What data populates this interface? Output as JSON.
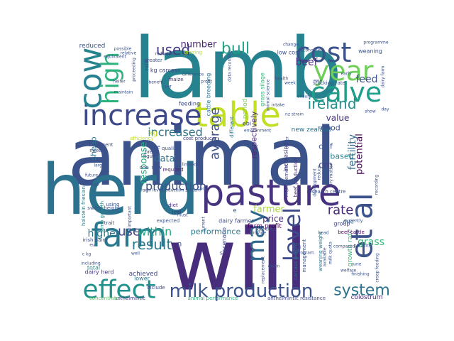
{
  "chart_data": {
    "type": "wordcloud",
    "words": [
      {
        "text": "lamb",
        "weight": 1.0,
        "color": "#26828e"
      },
      {
        "text": "animal",
        "weight": 0.98,
        "color": "#3b528b"
      },
      {
        "text": "will",
        "weight": 0.97,
        "color": "#472d7b"
      },
      {
        "text": "herd",
        "weight": 0.78,
        "color": "#2c728e"
      },
      {
        "text": "pasture",
        "weight": 0.46,
        "color": "#46327e"
      },
      {
        "text": "table",
        "weight": 0.45,
        "color": "#c2df23"
      },
      {
        "text": "farm",
        "weight": 0.44,
        "color": "#2a788e"
      },
      {
        "text": "increase",
        "weight": 0.44,
        "color": "#3e4989"
      },
      {
        "text": "cost",
        "weight": 0.42,
        "color": "#3b528b"
      },
      {
        "text": "year",
        "weight": 0.41,
        "color": "#6ece58"
      },
      {
        "text": "calve",
        "weight": 0.4,
        "color": "#1f9e89"
      },
      {
        "text": "effect",
        "weight": 0.4,
        "color": "#21918c"
      },
      {
        "text": "cow",
        "weight": 0.4,
        "color": "#26828e"
      },
      {
        "text": "high",
        "weight": 0.37,
        "color": "#2db27d"
      },
      {
        "text": "et al",
        "weight": 0.36,
        "color": "#3b528b"
      },
      {
        "text": "may",
        "weight": 0.33,
        "color": "#31688e"
      },
      {
        "text": "level",
        "weight": 0.3,
        "color": "#3e4a89"
      },
      {
        "text": "milk production",
        "weight": 0.28,
        "color": "#3b528b"
      },
      {
        "text": "system",
        "weight": 0.27,
        "color": "#2c728e"
      },
      {
        "text": "used",
        "weight": 0.26,
        "color": "#443a83"
      },
      {
        "text": "bull",
        "weight": 0.26,
        "color": "#1fa187"
      },
      {
        "text": "ireland",
        "weight": 0.23,
        "color": "#21918c"
      },
      {
        "text": "result",
        "weight": 0.22,
        "color": "#2a788e"
      },
      {
        "text": "use",
        "weight": 0.22,
        "color": "#414487"
      },
      {
        "text": "average",
        "weight": 0.21,
        "color": "#3b528b"
      },
      {
        "text": "rate",
        "weight": 0.2,
        "color": "#482878"
      },
      {
        "text": "production",
        "weight": 0.19,
        "color": "#3b528b"
      },
      {
        "text": "within",
        "weight": 0.19,
        "color": "#22a884"
      },
      {
        "text": "increased",
        "weight": 0.19,
        "color": "#2c728e"
      },
      {
        "text": "fertility",
        "weight": 0.19,
        "color": "#31688e"
      },
      {
        "text": "higher",
        "weight": 0.18,
        "color": "#2a788e"
      },
      {
        "text": "beef",
        "weight": 0.17,
        "color": "#472d7b"
      },
      {
        "text": "feed",
        "weight": 0.17,
        "color": "#3b528b"
      },
      {
        "text": "grass",
        "weight": 0.17,
        "color": "#35b779"
      },
      {
        "text": "potential",
        "weight": 0.16,
        "color": "#440154"
      },
      {
        "text": "number",
        "weight": 0.16,
        "color": "#482475"
      },
      {
        "text": "response",
        "weight": 0.16,
        "color": "#27ad81"
      },
      {
        "text": "data",
        "weight": 0.16,
        "color": "#2c728e"
      },
      {
        "text": "cm",
        "weight": 0.16,
        "color": "#414487"
      },
      {
        "text": "farmer",
        "weight": 0.16,
        "color": "#a8db34"
      },
      {
        "text": "value",
        "weight": 0.15,
        "color": "#46327e"
      },
      {
        "text": "price",
        "weight": 0.15,
        "color": "#472d7b"
      },
      {
        "text": "performance",
        "weight": 0.14,
        "color": "#2a788e"
      },
      {
        "text": "respectively",
        "weight": 0.14,
        "color": "#482475"
      },
      {
        "text": "calf",
        "weight": 0.13,
        "color": "#3b528b"
      },
      {
        "text": "good",
        "weight": 0.13,
        "color": "#3b528b"
      },
      {
        "text": "based",
        "weight": 0.13,
        "color": "#26828e"
      },
      {
        "text": "sheep",
        "weight": 0.13,
        "color": "#2c728e"
      },
      {
        "text": "kg",
        "weight": 0.12,
        "color": "#d8e219"
      },
      {
        "text": "achieved",
        "weight": 0.11,
        "color": "#3e4989"
      },
      {
        "text": "reduced",
        "weight": 0.11,
        "color": "#3b528b"
      },
      {
        "text": "colostrum",
        "weight": 0.1,
        "color": "#482878"
      },
      {
        "text": "new zealand",
        "weight": 0.1,
        "color": "#2c728e"
      },
      {
        "text": "farm profit",
        "weight": 0.1,
        "color": "#440154"
      },
      {
        "text": "growth rate",
        "weight": 0.1,
        "color": "#35b779"
      },
      {
        "text": "period",
        "weight": 0.1,
        "color": "#7ad151"
      },
      {
        "text": "dairy herd",
        "weight": 0.09,
        "color": "#443983"
      },
      {
        "text": "total",
        "weight": 0.09,
        "color": "#21918c"
      },
      {
        "text": "lower",
        "weight": 0.09,
        "color": "#2a788e"
      },
      {
        "text": "weaning",
        "weight": 0.09,
        "color": "#3b528b"
      },
      {
        "text": "low cost",
        "weight": 0.09,
        "color": "#3b528b"
      },
      {
        "text": "feeding",
        "weight": 0.09,
        "color": "#3e4989"
      },
      {
        "text": "due",
        "weight": 0.09,
        "color": "#31688e"
      },
      {
        "text": "group",
        "weight": 0.08,
        "color": "#414487"
      },
      {
        "text": "kg carcass",
        "weight": 0.08,
        "color": "#414487"
      },
      {
        "text": "cattle breeding",
        "weight": 0.08,
        "color": "#2a788e"
      },
      {
        "text": "grass silage",
        "weight": 0.08,
        "color": "#35b779"
      },
      {
        "text": "milk",
        "weight": 0.08,
        "color": "#3b528b"
      },
      {
        "text": "increasing",
        "weight": 0.08,
        "color": "#46337f"
      },
      {
        "text": "dairy farmer",
        "weight": 0.08,
        "color": "#3e4a89"
      },
      {
        "text": "scenario",
        "weight": 0.08,
        "color": "#3e4989"
      },
      {
        "text": "ebi",
        "weight": 0.08,
        "color": "#414487"
      },
      {
        "text": "anthelmintic resistance",
        "weight": 0.08,
        "color": "#3e4989"
      },
      {
        "text": "anthelmintic",
        "weight": 0.07,
        "color": "#443a83"
      },
      {
        "text": "concentrate",
        "weight": 0.07,
        "color": "#5ec962"
      },
      {
        "text": "animal performance",
        "weight": 0.07,
        "color": "#2db27d"
      },
      {
        "text": "sward height",
        "weight": 0.07,
        "color": "#3b528b"
      },
      {
        "text": "holstein friesian",
        "weight": 0.07,
        "color": "#26828e"
      },
      {
        "text": "irish dairy",
        "weight": 0.07,
        "color": "#3b528b"
      },
      {
        "text": "lamb growth",
        "weight": 0.07,
        "color": "#21918c"
      },
      {
        "text": "treatment",
        "weight": 0.07,
        "color": "#3e4a89"
      },
      {
        "text": "beef production",
        "weight": 0.07,
        "color": "#46327e"
      },
      {
        "text": "carcass weight",
        "weight": 0.07,
        "color": "#2c728e"
      },
      {
        "text": "weaning weight",
        "weight": 0.06,
        "color": "#2a788e"
      },
      {
        "text": "stocking rate",
        "weight": 0.06,
        "color": "#3b528b"
      },
      {
        "text": "beef cattle",
        "weight": 0.06,
        "color": "#440154"
      },
      {
        "text": "research centre",
        "weight": 0.06,
        "color": "#3b528b"
      },
      {
        "text": "management",
        "weight": 0.06,
        "color": "#3b528b"
      },
      {
        "text": "improvement",
        "weight": 0.06,
        "color": "#3b528b"
      },
      {
        "text": "different",
        "weight": 0.06,
        "color": "#2c728e"
      },
      {
        "text": "quality",
        "weight": 0.06,
        "color": "#3b528b"
      },
      {
        "text": "figure",
        "weight": 0.06,
        "color": "#3e4a89"
      },
      {
        "text": "required",
        "weight": 0.06,
        "color": "#482475"
      },
      {
        "text": "diet",
        "weight": 0.06,
        "color": "#472d7b"
      },
      {
        "text": "icbf",
        "weight": 0.06,
        "color": "#472d7b"
      },
      {
        "text": "expected",
        "weight": 0.06,
        "color": "#3b528b"
      },
      {
        "text": "using",
        "weight": 0.06,
        "color": "#3b528b"
      },
      {
        "text": "trait",
        "weight": 0.06,
        "color": "#3b528b"
      },
      {
        "text": "need",
        "weight": 0.06,
        "color": "#3b528b"
      },
      {
        "text": "include",
        "weight": 0.06,
        "color": "#3e4989"
      },
      {
        "text": "time",
        "weight": 0.06,
        "color": "#3b528b"
      },
      {
        "text": "breed",
        "weight": 0.06,
        "color": "#3b528b"
      },
      {
        "text": "one",
        "weight": 0.06,
        "color": "#3b528b"
      },
      {
        "text": "new",
        "weight": 0.06,
        "color": "#3b528b"
      },
      {
        "text": "greater",
        "weight": 0.06,
        "color": "#3b528b"
      },
      {
        "text": "cost producer",
        "weight": 0.05,
        "color": "#414487"
      },
      {
        "text": "efficiency",
        "weight": 0.05,
        "color": "#c2df23"
      },
      {
        "text": "grazing",
        "weight": 0.05,
        "color": "#b5de2b"
      },
      {
        "text": "maize",
        "weight": 0.05,
        "color": "#46337f"
      },
      {
        "text": "possible",
        "weight": 0.05,
        "color": "#3b528b"
      },
      {
        "text": "heifer",
        "weight": 0.05,
        "color": "#3b528b"
      },
      {
        "text": "program",
        "weight": 0.05,
        "color": "#3b528b"
      },
      {
        "text": "compared",
        "weight": 0.05,
        "color": "#3b528b"
      },
      {
        "text": "head",
        "weight": 0.05,
        "color": "#3b528b"
      },
      {
        "text": "genetic",
        "weight": 0.05,
        "color": "#3b528b"
      },
      {
        "text": "week",
        "weight": 0.05,
        "color": "#3b528b"
      },
      {
        "text": "well",
        "weight": 0.05,
        "color": "#3b528b"
      },
      {
        "text": "must",
        "weight": 0.05,
        "color": "#3b528b"
      },
      {
        "text": "reduce",
        "weight": 0.05,
        "color": "#3b528b"
      },
      {
        "text": "recording",
        "weight": 0.05,
        "color": "#3b528b"
      },
      {
        "text": "important",
        "weight": 0.05,
        "color": "#3b528b"
      },
      {
        "text": "large",
        "weight": 0.04,
        "color": "#3b528b"
      },
      {
        "text": "health",
        "weight": 0.04,
        "color": "#3b528b"
      },
      {
        "text": "difference",
        "weight": 0.04,
        "color": "#3b528b"
      },
      {
        "text": "profit",
        "weight": 0.04,
        "color": "#3b528b"
      },
      {
        "text": "reduction",
        "weight": 0.04,
        "color": "#3b528b"
      },
      {
        "text": "equivalent",
        "weight": 0.04,
        "color": "#3b528b"
      },
      {
        "text": "maintain",
        "weight": 0.04,
        "color": "#3b528b"
      },
      {
        "text": "benefit",
        "weight": 0.04,
        "color": "#3b528b"
      },
      {
        "text": "per",
        "weight": 0.04,
        "color": "#3b528b"
      },
      {
        "text": "environment",
        "weight": 0.04,
        "color": "#3b528b"
      },
      {
        "text": "ensure",
        "weight": 0.04,
        "color": "#3b528b"
      },
      {
        "text": "intake",
        "weight": 0.04,
        "color": "#3b528b"
      },
      {
        "text": "current",
        "weight": 0.04,
        "color": "#3b528b"
      },
      {
        "text": "currently",
        "weight": 0.04,
        "color": "#3b528b"
      },
      {
        "text": "limited",
        "weight": 0.04,
        "color": "#3b528b"
      },
      {
        "text": "flock",
        "weight": 0.04,
        "color": "#3b528b"
      },
      {
        "text": "farm level",
        "weight": 0.04,
        "color": "#3b528b"
      },
      {
        "text": "production system",
        "weight": 0.04,
        "color": "#3b528b"
      },
      {
        "text": "replacement",
        "weight": 0.04,
        "color": "#3b528b"
      },
      {
        "text": "given",
        "weight": 0.04,
        "color": "#3b528b"
      },
      {
        "text": "provide",
        "weight": 0.04,
        "color": "#3b528b"
      },
      {
        "text": "welfare",
        "weight": 0.04,
        "color": "#3b528b"
      },
      {
        "text": "finishing",
        "weight": 0.04,
        "color": "#3b528b"
      },
      {
        "text": "june",
        "weight": 0.04,
        "color": "#3b528b"
      },
      {
        "text": "change",
        "weight": 0.04,
        "color": "#3b528b"
      },
      {
        "text": "economic",
        "weight": 0.04,
        "color": "#3b528b"
      },
      {
        "text": "programme",
        "weight": 0.04,
        "color": "#3b528b"
      },
      {
        "text": "early",
        "weight": 0.04,
        "color": "#3b528b"
      },
      {
        "text": "dairy farm",
        "weight": 0.04,
        "color": "#3b528b"
      },
      {
        "text": "study",
        "weight": 0.04,
        "color": "#3b528b"
      },
      {
        "text": "show",
        "weight": 0.04,
        "color": "#3b528b"
      },
      {
        "text": "day",
        "weight": 0.04,
        "color": "#3b528b"
      },
      {
        "text": "parasite",
        "weight": 0.04,
        "color": "#3b528b"
      },
      {
        "text": "creep feeding",
        "weight": 0.04,
        "color": "#3b528b"
      },
      {
        "text": "either",
        "weight": 0.04,
        "color": "#3b528b"
      },
      {
        "text": "milk quota",
        "weight": 0.04,
        "color": "#3b528b"
      },
      {
        "text": "future",
        "weight": 0.04,
        "color": "#3b528b"
      },
      {
        "text": "age",
        "weight": 0.04,
        "color": "#3b528b"
      },
      {
        "text": "eu",
        "weight": 0.04,
        "color": "#3b528b"
      },
      {
        "text": "c kg",
        "weight": 0.04,
        "color": "#3b528b"
      },
      {
        "text": "including",
        "weight": 0.04,
        "color": "#3b528b"
      },
      {
        "text": "relative",
        "weight": 0.04,
        "color": "#3b528b"
      },
      {
        "text": "proceeding",
        "weight": 0.04,
        "color": "#3b528b"
      },
      {
        "text": "data recording",
        "weight": 0.04,
        "color": "#3b528b"
      },
      {
        "text": "nz strain",
        "weight": 0.04,
        "color": "#3b528b"
      },
      {
        "text": "animal science",
        "weight": 0.04,
        "color": "#3b528b"
      },
      {
        "text": "development",
        "weight": 0.04,
        "color": "#3b528b"
      },
      {
        "text": "dry matter",
        "weight": 0.04,
        "color": "#3b528b"
      },
      {
        "text": "available",
        "weight": 0.04,
        "color": "#3b528b"
      },
      {
        "text": "ewe",
        "weight": 0.04,
        "color": "#3b528b"
      },
      {
        "text": "n",
        "weight": 0.04,
        "color": "#3b528b"
      },
      {
        "text": "e",
        "weight": 0.04,
        "color": "#3b528b"
      },
      {
        "text": "s",
        "weight": 0.04,
        "color": "#3b528b"
      }
    ]
  }
}
